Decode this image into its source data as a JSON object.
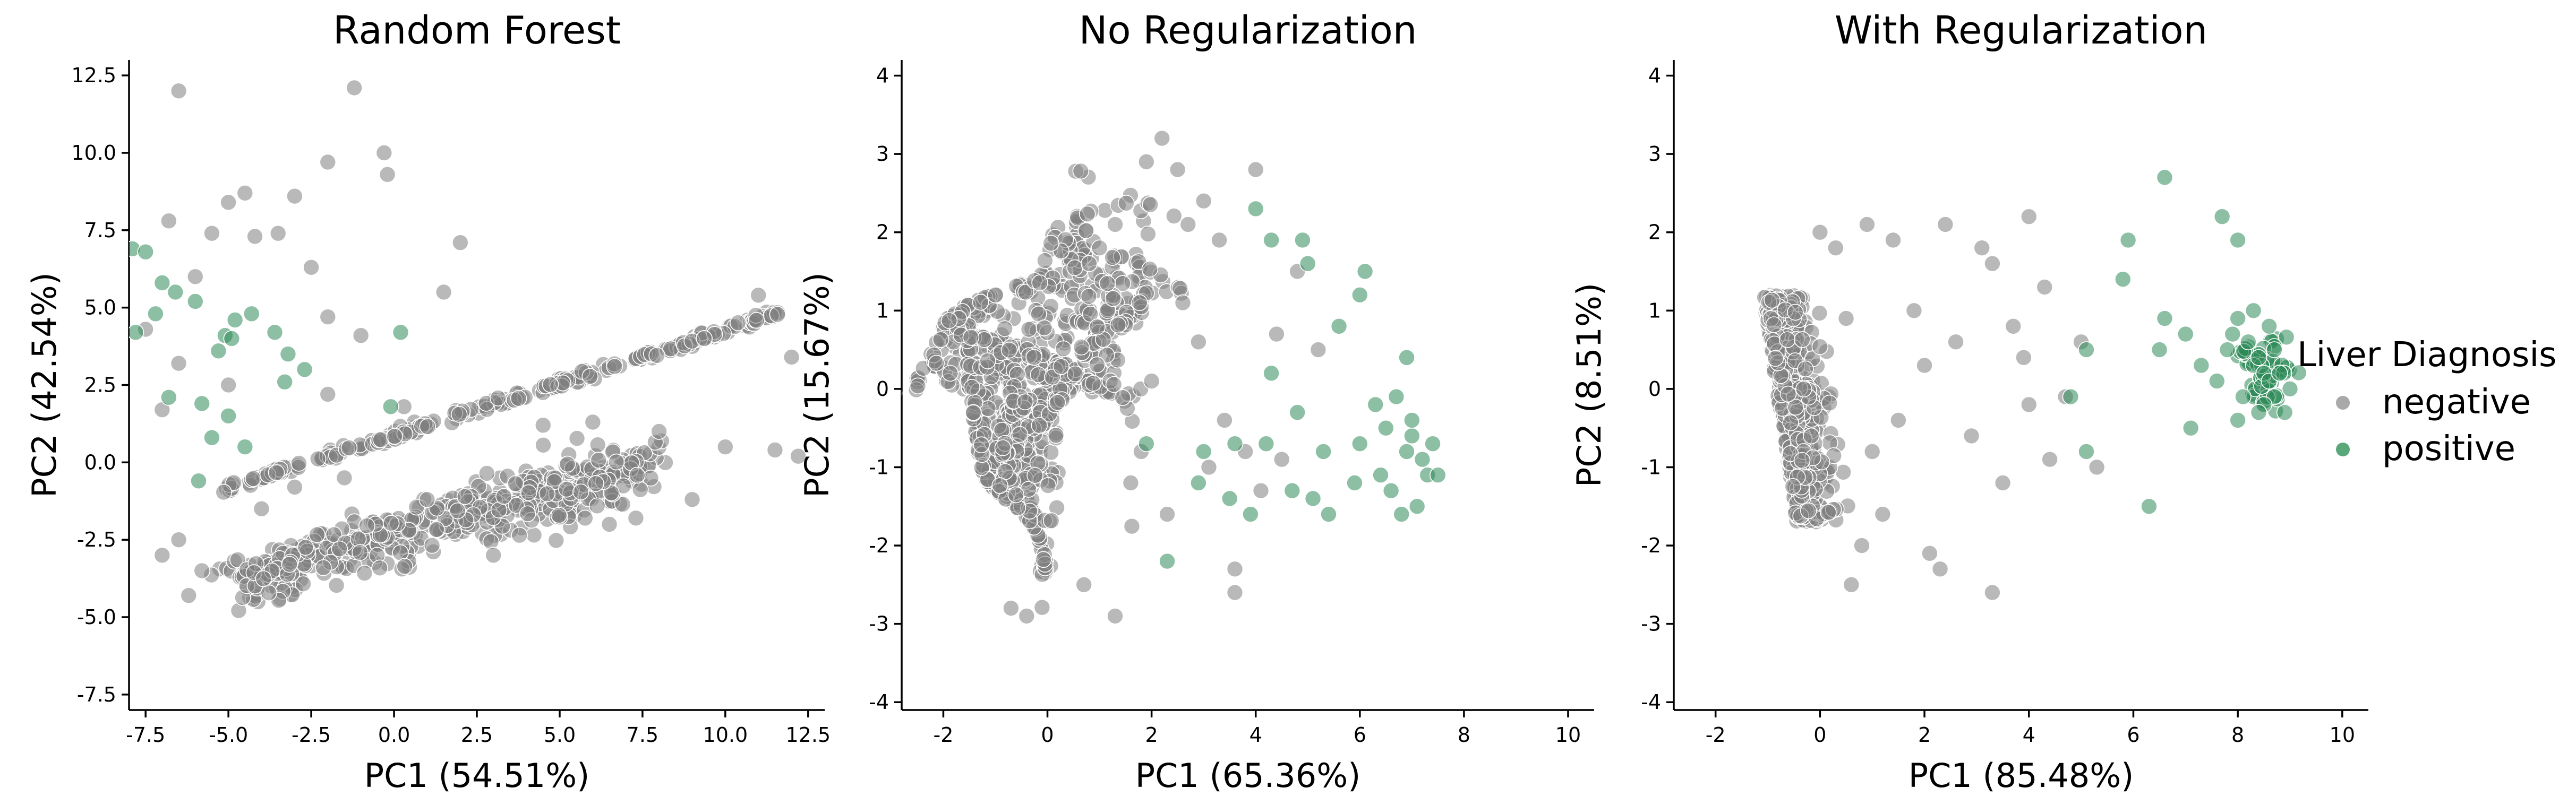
{
  "chart_data": [
    {
      "type": "scatter",
      "title": "Random Forest",
      "xlabel": "PC1 (54.51%)",
      "ylabel": "PC2 (42.54%)",
      "xlim": [
        -8,
        13
      ],
      "ylim": [
        -8,
        13
      ],
      "xticks": [
        "-7.5",
        "-5.0",
        "-2.5",
        "0.0",
        "2.5",
        "5.0",
        "7.5",
        "10.0",
        "12.5"
      ],
      "yticks": [
        "-7.5",
        "-5.0",
        "-2.5",
        "0.0",
        "2.5",
        "5.0",
        "7.5",
        "10.0",
        "12.5"
      ],
      "series": [
        {
          "name": "negative",
          "color": "#808080",
          "points": [
            [
              -6.5,
              12.0
            ],
            [
              -1.2,
              12.1
            ],
            [
              -0.3,
              10.0
            ],
            [
              -0.2,
              9.3
            ],
            [
              -2.0,
              9.7
            ],
            [
              -3.0,
              8.6
            ],
            [
              -4.5,
              8.7
            ],
            [
              -5.0,
              8.4
            ],
            [
              -3.5,
              7.4
            ],
            [
              -4.2,
              7.3
            ],
            [
              -5.5,
              7.4
            ],
            [
              -6.8,
              7.8
            ],
            [
              2.0,
              7.1
            ],
            [
              1.5,
              5.5
            ],
            [
              -2.5,
              6.3
            ],
            [
              -2.0,
              4.7
            ],
            [
              -6.0,
              6.0
            ],
            [
              -7.5,
              4.3
            ],
            [
              -6.5,
              3.2
            ],
            [
              -7.0,
              1.7
            ],
            [
              -5.0,
              2.5
            ],
            [
              -2.0,
              2.2
            ],
            [
              -1.0,
              4.1
            ],
            [
              0.3,
              1.8
            ],
            [
              4.5,
              1.2
            ],
            [
              6.0,
              1.3
            ],
            [
              8.0,
              1.0
            ],
            [
              10.0,
              0.5
            ],
            [
              11.5,
              0.4
            ],
            [
              12.2,
              0.2
            ],
            [
              12.0,
              3.4
            ],
            [
              11.0,
              5.4
            ],
            [
              7.3,
              -1.8
            ],
            [
              9.0,
              -1.2
            ],
            [
              6.5,
              -2.0
            ],
            [
              -4.0,
              -1.5
            ],
            [
              -6.5,
              -2.5
            ],
            [
              -7.0,
              -3.0
            ],
            [
              -5.8,
              -3.5
            ],
            [
              -6.2,
              -4.3
            ],
            [
              3.0,
              -3.0
            ],
            [
              -3.0,
              -0.8
            ],
            [
              -1.5,
              -0.5
            ],
            [
              1.0,
              -1.2
            ]
          ]
        },
        {
          "name": "positive",
          "color": "#2e8b57",
          "points": [
            [
              -7.9,
              6.9
            ],
            [
              -7.5,
              6.8
            ],
            [
              -7.0,
              5.8
            ],
            [
              -6.6,
              5.5
            ],
            [
              -6.0,
              5.2
            ],
            [
              -7.2,
              4.8
            ],
            [
              -7.8,
              4.2
            ],
            [
              -4.3,
              4.8
            ],
            [
              -4.8,
              4.6
            ],
            [
              -5.1,
              4.1
            ],
            [
              -5.3,
              3.6
            ],
            [
              -4.9,
              4.0
            ],
            [
              -3.6,
              4.2
            ],
            [
              -3.2,
              3.5
            ],
            [
              -2.7,
              3.0
            ],
            [
              0.2,
              4.2
            ],
            [
              -5.8,
              1.9
            ],
            [
              -5.0,
              1.5
            ],
            [
              -5.5,
              0.8
            ],
            [
              -4.5,
              0.5
            ],
            [
              -5.9,
              -0.6
            ],
            [
              -0.1,
              1.8
            ],
            [
              -6.8,
              2.1
            ],
            [
              -3.3,
              2.6
            ]
          ]
        }
      ]
    },
    {
      "type": "scatter",
      "title": "No Regularization",
      "xlabel": "PC1 (65.36%)",
      "ylabel": "PC2 (15.67%)",
      "xlim": [
        -2.8,
        10.5
      ],
      "ylim": [
        -4.1,
        4.2
      ],
      "xticks": [
        "-2",
        "0",
        "2",
        "4",
        "6",
        "8",
        "10"
      ],
      "yticks": [
        "-4",
        "-3",
        "-2",
        "-1",
        "0",
        "1",
        "2",
        "3",
        "4"
      ],
      "series": [
        {
          "name": "negative",
          "color": "#808080",
          "points": [
            [
              1.9,
              2.9
            ],
            [
              2.2,
              3.2
            ],
            [
              2.5,
              2.8
            ],
            [
              3.0,
              2.4
            ],
            [
              4.0,
              2.8
            ],
            [
              2.7,
              2.1
            ],
            [
              3.3,
              1.9
            ],
            [
              1.3,
              2.1
            ],
            [
              1.0,
              1.8
            ],
            [
              0.8,
              1.6
            ],
            [
              3.6,
              -2.3
            ],
            [
              3.6,
              -2.6
            ],
            [
              -0.7,
              -2.8
            ],
            [
              -0.4,
              -2.9
            ],
            [
              1.3,
              -2.9
            ],
            [
              0.7,
              -2.5
            ],
            [
              4.1,
              -1.3
            ],
            [
              3.8,
              -0.8
            ],
            [
              3.4,
              -0.4
            ],
            [
              4.4,
              0.7
            ],
            [
              2.6,
              1.1
            ],
            [
              2.9,
              0.6
            ],
            [
              1.8,
              -0.8
            ],
            [
              2.3,
              -1.6
            ],
            [
              1.6,
              -1.2
            ],
            [
              4.8,
              1.5
            ],
            [
              5.2,
              0.5
            ],
            [
              3.1,
              -1.0
            ],
            [
              2.0,
              0.1
            ],
            [
              4.5,
              -0.9
            ]
          ]
        },
        {
          "name": "positive",
          "color": "#2e8b57",
          "points": [
            [
              4.0,
              2.3
            ],
            [
              4.3,
              1.9
            ],
            [
              4.9,
              1.9
            ],
            [
              5.0,
              1.6
            ],
            [
              6.0,
              1.2
            ],
            [
              6.1,
              1.5
            ],
            [
              5.6,
              0.8
            ],
            [
              4.3,
              0.2
            ],
            [
              4.8,
              -0.3
            ],
            [
              3.6,
              -0.7
            ],
            [
              4.2,
              -0.7
            ],
            [
              3.0,
              -0.8
            ],
            [
              2.9,
              -1.2
            ],
            [
              3.5,
              -1.4
            ],
            [
              3.9,
              -1.6
            ],
            [
              4.7,
              -1.3
            ],
            [
              5.1,
              -1.4
            ],
            [
              5.4,
              -1.6
            ],
            [
              5.9,
              -1.2
            ],
            [
              6.4,
              -1.1
            ],
            [
              6.6,
              -1.3
            ],
            [
              6.0,
              -0.7
            ],
            [
              6.5,
              -0.5
            ],
            [
              6.7,
              -0.1
            ],
            [
              6.9,
              0.4
            ],
            [
              7.0,
              -0.6
            ],
            [
              7.2,
              -0.9
            ],
            [
              7.3,
              -1.1
            ],
            [
              7.5,
              -1.1
            ],
            [
              7.1,
              -1.5
            ],
            [
              6.8,
              -1.6
            ],
            [
              6.9,
              -0.8
            ],
            [
              7.0,
              -0.4
            ],
            [
              7.4,
              -0.7
            ],
            [
              6.3,
              -0.2
            ],
            [
              2.3,
              -2.2
            ],
            [
              1.9,
              -0.7
            ],
            [
              5.3,
              -0.8
            ]
          ]
        }
      ]
    },
    {
      "type": "scatter",
      "title": "With Regularization",
      "xlabel": "PC1 (85.48%)",
      "ylabel": "PC2 (8.51%)",
      "xlim": [
        -2.8,
        10.5
      ],
      "ylim": [
        -4.1,
        4.2
      ],
      "xticks": [
        "-2",
        "0",
        "2",
        "4",
        "6",
        "8",
        "10"
      ],
      "yticks": [
        "-4",
        "-3",
        "-2",
        "-1",
        "0",
        "1",
        "2",
        "3",
        "4"
      ],
      "series": [
        {
          "name": "negative",
          "color": "#808080",
          "points": [
            [
              0.0,
              2.0
            ],
            [
              0.3,
              1.8
            ],
            [
              0.9,
              2.1
            ],
            [
              1.4,
              1.9
            ],
            [
              2.4,
              2.1
            ],
            [
              3.1,
              1.8
            ],
            [
              3.3,
              1.6
            ],
            [
              4.0,
              2.2
            ],
            [
              4.3,
              1.3
            ],
            [
              3.7,
              0.8
            ],
            [
              2.6,
              0.6
            ],
            [
              2.0,
              0.3
            ],
            [
              1.5,
              -0.4
            ],
            [
              1.2,
              -1.6
            ],
            [
              2.1,
              -2.1
            ],
            [
              2.3,
              -2.3
            ],
            [
              3.3,
              -2.6
            ],
            [
              0.8,
              -2.0
            ],
            [
              0.6,
              -2.5
            ],
            [
              4.4,
              -0.9
            ],
            [
              4.0,
              -0.2
            ],
            [
              3.5,
              -1.2
            ],
            [
              5.0,
              0.6
            ],
            [
              4.7,
              -0.1
            ],
            [
              5.3,
              -1.0
            ],
            [
              1.8,
              1.0
            ],
            [
              0.5,
              0.9
            ],
            [
              2.9,
              -0.6
            ],
            [
              3.9,
              0.4
            ],
            [
              1.0,
              -0.8
            ]
          ]
        },
        {
          "name": "positive",
          "color": "#2e8b57",
          "points": [
            [
              6.6,
              2.7
            ],
            [
              7.7,
              2.2
            ],
            [
              8.0,
              1.9
            ],
            [
              5.9,
              1.9
            ],
            [
              5.8,
              1.4
            ],
            [
              6.5,
              0.5
            ],
            [
              5.1,
              0.5
            ],
            [
              6.6,
              0.9
            ],
            [
              7.0,
              0.7
            ],
            [
              7.3,
              0.3
            ],
            [
              7.6,
              0.1
            ],
            [
              7.8,
              0.5
            ],
            [
              8.0,
              0.9
            ],
            [
              8.2,
              0.6
            ],
            [
              8.3,
              0.3
            ],
            [
              8.4,
              0.4
            ],
            [
              8.5,
              0.2
            ],
            [
              8.6,
              0.1
            ],
            [
              8.7,
              -0.1
            ],
            [
              8.8,
              0.2
            ],
            [
              9.0,
              0.0
            ],
            [
              8.9,
              -0.3
            ],
            [
              8.5,
              -0.2
            ],
            [
              8.1,
              -0.1
            ],
            [
              7.9,
              0.7
            ],
            [
              8.3,
              1.0
            ],
            [
              8.6,
              0.8
            ],
            [
              7.1,
              -0.5
            ],
            [
              6.3,
              -1.5
            ],
            [
              5.1,
              -0.8
            ],
            [
              4.8,
              -0.1
            ],
            [
              8.0,
              -0.4
            ],
            [
              8.4,
              -0.3
            ],
            [
              8.7,
              0.5
            ]
          ]
        }
      ]
    }
  ],
  "legend": {
    "title": "Liver Diagnosis",
    "items": [
      {
        "label": "negative",
        "color": "#a9a9a9"
      },
      {
        "label": "positive",
        "color": "#5aa87a"
      }
    ]
  }
}
